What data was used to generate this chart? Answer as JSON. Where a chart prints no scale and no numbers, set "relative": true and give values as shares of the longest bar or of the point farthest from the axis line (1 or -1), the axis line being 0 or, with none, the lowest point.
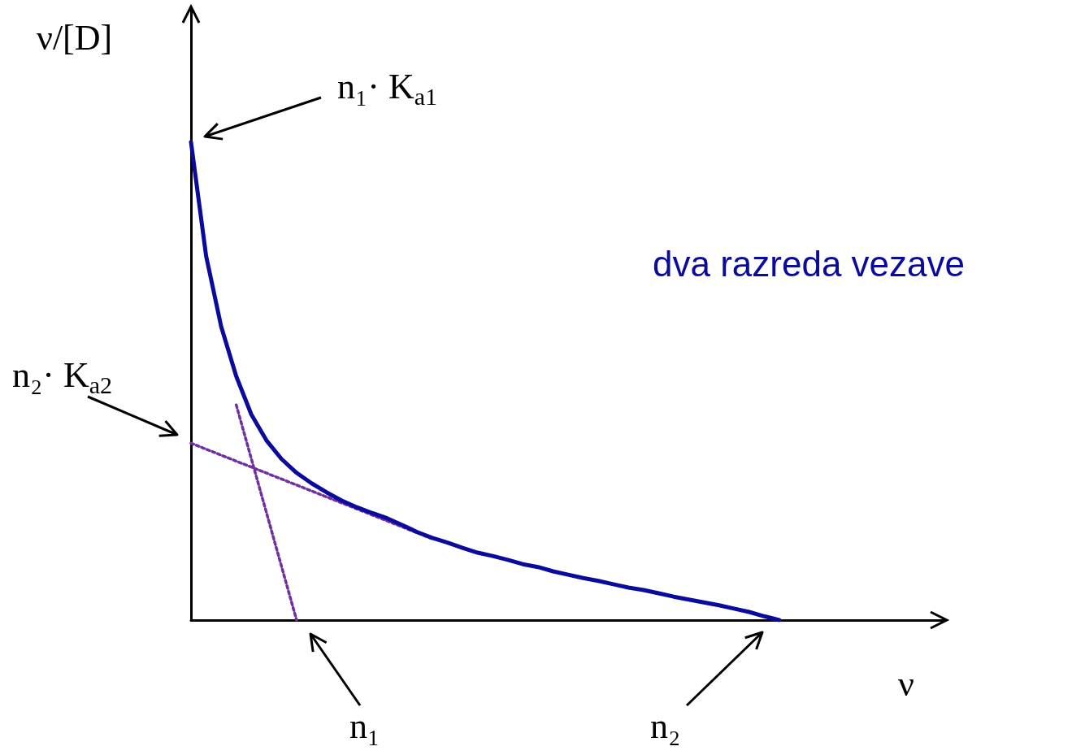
{
  "chart_data": {
    "type": "line",
    "relative": true,
    "ylabel": "ν/[D]",
    "xlabel": "ν",
    "categories": [
      null,
      null,
      null,
      null,
      null,
      null,
      null,
      null,
      null,
      null,
      null,
      null,
      null,
      null,
      null,
      null,
      null,
      null,
      null,
      null,
      null,
      null,
      null,
      null,
      null,
      null,
      null,
      null,
      null,
      null,
      null,
      null,
      null,
      null,
      null,
      null,
      null,
      null,
      null,
      null,
      null,
      null,
      null,
      null,
      null,
      null,
      null,
      null,
      null,
      null,
      null
    ],
    "series": [
      {
        "color": "#0a0a9c",
        "line_style": "solid",
        "values": [
          1.0,
          0.762,
          0.614,
          0.51,
          0.43,
          0.376,
          0.337,
          0.308,
          0.286,
          0.267,
          0.25,
          0.236,
          0.224,
          0.213,
          0.199,
          0.184,
          0.172,
          0.162,
          0.151,
          0.141,
          0.134,
          0.126,
          0.117,
          0.111,
          0.102,
          0.095,
          0.088,
          0.082,
          0.075,
          0.068,
          0.063,
          0.056,
          0.049,
          0.043,
          0.037,
          0.031,
          0.024,
          0.017,
          0.008,
          0,
          null,
          null,
          null,
          null,
          null,
          null,
          null,
          null,
          null,
          null,
          null
        ]
      },
      {
        "color": "#7030a0",
        "line_style": "dotted",
        "values": [
          null,
          null,
          null,
          0.45,
          null,
          null,
          null,
          0,
          null,
          null,
          null,
          null,
          null,
          null,
          null,
          null,
          null,
          null,
          null,
          null,
          null,
          null,
          null,
          null,
          null,
          null,
          null,
          null,
          null,
          null,
          null,
          null,
          null,
          null,
          null,
          null,
          null,
          null,
          null,
          null,
          null,
          null,
          null,
          null,
          null,
          null,
          null,
          null,
          null,
          null,
          null
        ]
      },
      {
        "color": "#7030a0",
        "line_style": "dotted",
        "values": [
          0.37,
          null,
          null,
          null,
          null,
          null,
          null,
          null,
          null,
          null,
          null,
          null,
          null,
          null,
          null,
          null,
          0.17,
          null,
          null,
          null,
          null,
          null,
          null,
          null,
          null,
          null,
          null,
          null,
          null,
          null,
          null,
          null,
          null,
          null,
          null,
          null,
          null,
          null,
          null,
          null,
          null,
          null,
          null,
          null,
          null,
          null,
          null,
          null,
          null,
          null,
          null
        ]
      }
    ],
    "annotations": [
      "n₁· K$_{a1}$",
      "n₂· K$_{a2}$",
      "dva razreda vezave",
      "n₁",
      "n₂"
    ]
  }
}
